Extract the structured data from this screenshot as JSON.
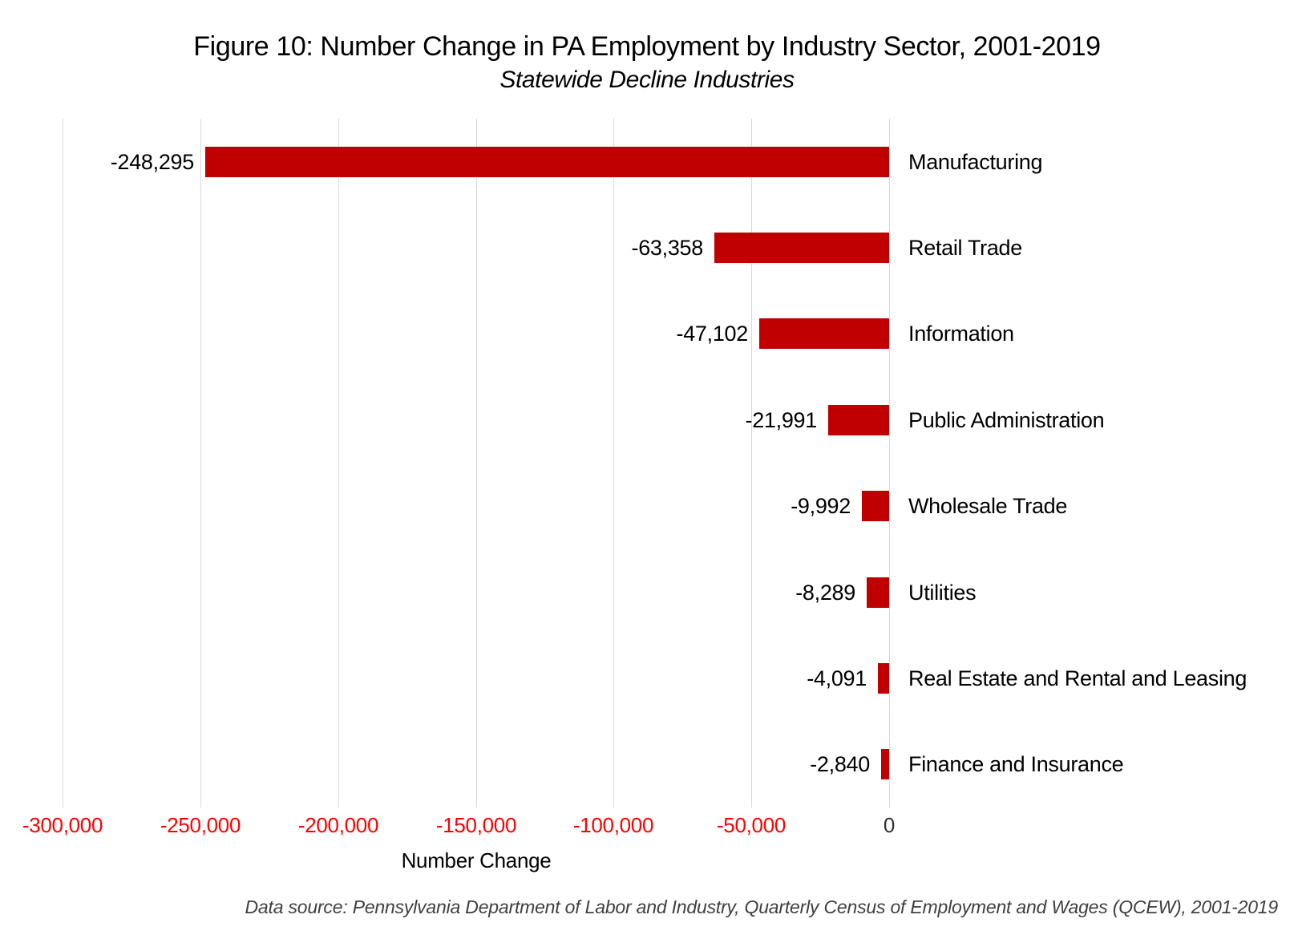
{
  "chart_data": {
    "type": "bar",
    "orientation": "horizontal",
    "title": "Figure 10: Number Change in PA Employment by Industry Sector, 2001-2019",
    "subtitle": "Statewide Decline Industries",
    "categories": [
      "Manufacturing",
      "Retail Trade",
      "Information",
      "Public Administration",
      "Wholesale Trade",
      "Utilities",
      "Real Estate and Rental and Leasing",
      "Finance and Insurance"
    ],
    "values": [
      -248295,
      -63358,
      -47102,
      -21991,
      -9992,
      -8289,
      -4091,
      -2840
    ],
    "value_labels": [
      "-248,295",
      "-63,358",
      "-47,102",
      "-21,991",
      "-9,992",
      "-8,289",
      "-4,091",
      "-2,840"
    ],
    "xlabel": "Number Change",
    "xlim": [
      -300000,
      0
    ],
    "xticks": [
      {
        "label": "-300,000",
        "value": -300000
      },
      {
        "label": "-250,000",
        "value": -250000
      },
      {
        "label": "-200,000",
        "value": -200000
      },
      {
        "label": "-150,000",
        "value": -150000
      },
      {
        "label": "-100,000",
        "value": -100000
      },
      {
        "label": "-50,000",
        "value": -50000
      },
      {
        "label": "0",
        "value": 0
      }
    ],
    "grid": true,
    "legend": "none",
    "colors": {
      "bar": "#c00000",
      "negative_tick_label": "#ff0000",
      "zero_tick_label": "#303030",
      "gridline": "#d9d9d9",
      "text": "#000000",
      "footer_text": "#3f3f3f"
    }
  },
  "footer": {
    "source_text": "Data source: Pennsylvania Department of Labor and Industry, Quarterly Census of Employment and Wages (QCEW), 2001-2019"
  }
}
